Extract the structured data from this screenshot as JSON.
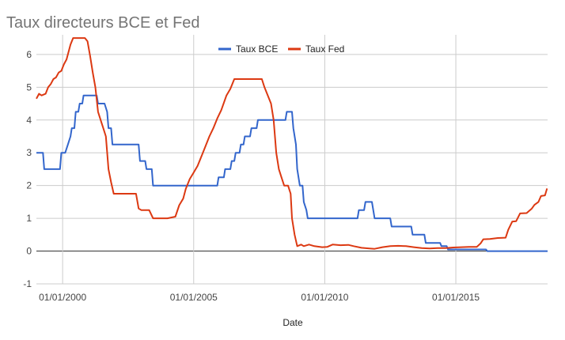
{
  "chart_data": {
    "type": "line",
    "title": "Taux directeurs BCE et Fed",
    "xlabel": "Date",
    "ylabel": "",
    "ylim": [
      -1,
      6.6
    ],
    "yticks": [
      -1,
      0,
      1,
      2,
      3,
      4,
      5,
      6
    ],
    "xlim": [
      1999.0,
      2018.5
    ],
    "xticks": [
      {
        "label": "01/01/2000",
        "year": 2000
      },
      {
        "label": "01/01/2005",
        "year": 2005
      },
      {
        "label": "01/01/2010",
        "year": 2010
      },
      {
        "label": "01/01/2015",
        "year": 2015
      }
    ],
    "grid": true,
    "legend_position": "top",
    "series": [
      {
        "name": "Taux BCE",
        "color": "#3366cc",
        "points": [
          [
            1999.0,
            3.0
          ],
          [
            1999.25,
            3.0
          ],
          [
            1999.3,
            2.5
          ],
          [
            1999.9,
            2.5
          ],
          [
            1999.95,
            3.0
          ],
          [
            2000.1,
            3.0
          ],
          [
            2000.2,
            3.25
          ],
          [
            2000.3,
            3.5
          ],
          [
            2000.35,
            3.75
          ],
          [
            2000.45,
            3.75
          ],
          [
            2000.5,
            4.25
          ],
          [
            2000.6,
            4.25
          ],
          [
            2000.65,
            4.5
          ],
          [
            2000.75,
            4.5
          ],
          [
            2000.8,
            4.75
          ],
          [
            2001.3,
            4.75
          ],
          [
            2001.35,
            4.5
          ],
          [
            2001.6,
            4.5
          ],
          [
            2001.7,
            4.25
          ],
          [
            2001.75,
            3.75
          ],
          [
            2001.85,
            3.75
          ],
          [
            2001.9,
            3.25
          ],
          [
            2002.9,
            3.25
          ],
          [
            2002.95,
            2.75
          ],
          [
            2003.15,
            2.75
          ],
          [
            2003.2,
            2.5
          ],
          [
            2003.4,
            2.5
          ],
          [
            2003.45,
            2.0
          ],
          [
            2005.9,
            2.0
          ],
          [
            2005.95,
            2.25
          ],
          [
            2006.15,
            2.25
          ],
          [
            2006.2,
            2.5
          ],
          [
            2006.4,
            2.5
          ],
          [
            2006.45,
            2.75
          ],
          [
            2006.55,
            2.75
          ],
          [
            2006.6,
            3.0
          ],
          [
            2006.75,
            3.0
          ],
          [
            2006.8,
            3.25
          ],
          [
            2006.9,
            3.25
          ],
          [
            2006.95,
            3.5
          ],
          [
            2007.15,
            3.5
          ],
          [
            2007.2,
            3.75
          ],
          [
            2007.4,
            3.75
          ],
          [
            2007.45,
            4.0
          ],
          [
            2008.5,
            4.0
          ],
          [
            2008.55,
            4.25
          ],
          [
            2008.75,
            4.25
          ],
          [
            2008.8,
            3.75
          ],
          [
            2008.9,
            3.25
          ],
          [
            2008.95,
            2.5
          ],
          [
            2009.05,
            2.0
          ],
          [
            2009.15,
            2.0
          ],
          [
            2009.2,
            1.5
          ],
          [
            2009.3,
            1.25
          ],
          [
            2009.35,
            1.0
          ],
          [
            2011.25,
            1.0
          ],
          [
            2011.3,
            1.25
          ],
          [
            2011.5,
            1.25
          ],
          [
            2011.55,
            1.5
          ],
          [
            2011.8,
            1.5
          ],
          [
            2011.85,
            1.25
          ],
          [
            2011.9,
            1.0
          ],
          [
            2012.5,
            1.0
          ],
          [
            2012.55,
            0.75
          ],
          [
            2013.3,
            0.75
          ],
          [
            2013.35,
            0.5
          ],
          [
            2013.8,
            0.5
          ],
          [
            2013.85,
            0.25
          ],
          [
            2014.4,
            0.25
          ],
          [
            2014.45,
            0.15
          ],
          [
            2014.65,
            0.15
          ],
          [
            2014.7,
            0.05
          ],
          [
            2016.15,
            0.05
          ],
          [
            2016.2,
            0.0
          ],
          [
            2018.5,
            0.0
          ]
        ]
      },
      {
        "name": "Taux Fed",
        "color": "#dc3912",
        "points": [
          [
            1999.0,
            4.65
          ],
          [
            1999.1,
            4.8
          ],
          [
            1999.2,
            4.75
          ],
          [
            1999.35,
            4.8
          ],
          [
            1999.45,
            5.0
          ],
          [
            1999.55,
            5.1
          ],
          [
            1999.65,
            5.25
          ],
          [
            1999.75,
            5.3
          ],
          [
            1999.85,
            5.45
          ],
          [
            1999.95,
            5.5
          ],
          [
            2000.05,
            5.7
          ],
          [
            2000.15,
            5.85
          ],
          [
            2000.3,
            6.3
          ],
          [
            2000.4,
            6.5
          ],
          [
            2000.6,
            6.5
          ],
          [
            2000.85,
            6.5
          ],
          [
            2000.95,
            6.4
          ],
          [
            2001.05,
            5.95
          ],
          [
            2001.15,
            5.45
          ],
          [
            2001.25,
            5.0
          ],
          [
            2001.35,
            4.25
          ],
          [
            2001.45,
            4.0
          ],
          [
            2001.55,
            3.75
          ],
          [
            2001.65,
            3.5
          ],
          [
            2001.75,
            2.5
          ],
          [
            2001.85,
            2.1
          ],
          [
            2001.95,
            1.75
          ],
          [
            2002.2,
            1.75
          ],
          [
            2002.5,
            1.75
          ],
          [
            2002.8,
            1.75
          ],
          [
            2002.9,
            1.3
          ],
          [
            2003.0,
            1.25
          ],
          [
            2003.3,
            1.25
          ],
          [
            2003.45,
            1.0
          ],
          [
            2003.7,
            1.0
          ],
          [
            2004.0,
            1.0
          ],
          [
            2004.3,
            1.05
          ],
          [
            2004.45,
            1.4
          ],
          [
            2004.6,
            1.6
          ],
          [
            2004.7,
            1.9
          ],
          [
            2004.85,
            2.2
          ],
          [
            2005.0,
            2.4
          ],
          [
            2005.15,
            2.6
          ],
          [
            2005.3,
            2.9
          ],
          [
            2005.45,
            3.2
          ],
          [
            2005.6,
            3.5
          ],
          [
            2005.75,
            3.75
          ],
          [
            2005.9,
            4.05
          ],
          [
            2006.05,
            4.3
          ],
          [
            2006.25,
            4.75
          ],
          [
            2006.4,
            4.95
          ],
          [
            2006.55,
            5.25
          ],
          [
            2006.8,
            5.25
          ],
          [
            2007.2,
            5.25
          ],
          [
            2007.6,
            5.25
          ],
          [
            2007.7,
            5.0
          ],
          [
            2007.85,
            4.7
          ],
          [
            2007.95,
            4.5
          ],
          [
            2008.05,
            4.0
          ],
          [
            2008.15,
            3.0
          ],
          [
            2008.25,
            2.5
          ],
          [
            2008.35,
            2.25
          ],
          [
            2008.45,
            2.0
          ],
          [
            2008.6,
            2.0
          ],
          [
            2008.7,
            1.75
          ],
          [
            2008.75,
            1.0
          ],
          [
            2008.85,
            0.5
          ],
          [
            2008.95,
            0.15
          ],
          [
            2009.1,
            0.2
          ],
          [
            2009.2,
            0.15
          ],
          [
            2009.4,
            0.2
          ],
          [
            2009.6,
            0.15
          ],
          [
            2009.9,
            0.12
          ],
          [
            2010.1,
            0.13
          ],
          [
            2010.3,
            0.2
          ],
          [
            2010.6,
            0.18
          ],
          [
            2010.9,
            0.19
          ],
          [
            2011.1,
            0.15
          ],
          [
            2011.4,
            0.1
          ],
          [
            2011.7,
            0.08
          ],
          [
            2011.9,
            0.07
          ],
          [
            2012.2,
            0.12
          ],
          [
            2012.5,
            0.15
          ],
          [
            2012.8,
            0.16
          ],
          [
            2013.1,
            0.15
          ],
          [
            2013.4,
            0.12
          ],
          [
            2013.7,
            0.09
          ],
          [
            2014.0,
            0.08
          ],
          [
            2014.3,
            0.09
          ],
          [
            2014.6,
            0.09
          ],
          [
            2014.9,
            0.11
          ],
          [
            2015.2,
            0.12
          ],
          [
            2015.5,
            0.13
          ],
          [
            2015.8,
            0.13
          ],
          [
            2015.95,
            0.24
          ],
          [
            2016.05,
            0.36
          ],
          [
            2016.3,
            0.37
          ],
          [
            2016.6,
            0.4
          ],
          [
            2016.9,
            0.41
          ],
          [
            2017.0,
            0.65
          ],
          [
            2017.15,
            0.9
          ],
          [
            2017.3,
            0.91
          ],
          [
            2017.45,
            1.15
          ],
          [
            2017.7,
            1.16
          ],
          [
            2017.9,
            1.3
          ],
          [
            2018.0,
            1.41
          ],
          [
            2018.15,
            1.5
          ],
          [
            2018.25,
            1.68
          ],
          [
            2018.4,
            1.7
          ],
          [
            2018.48,
            1.91
          ]
        ]
      }
    ]
  }
}
